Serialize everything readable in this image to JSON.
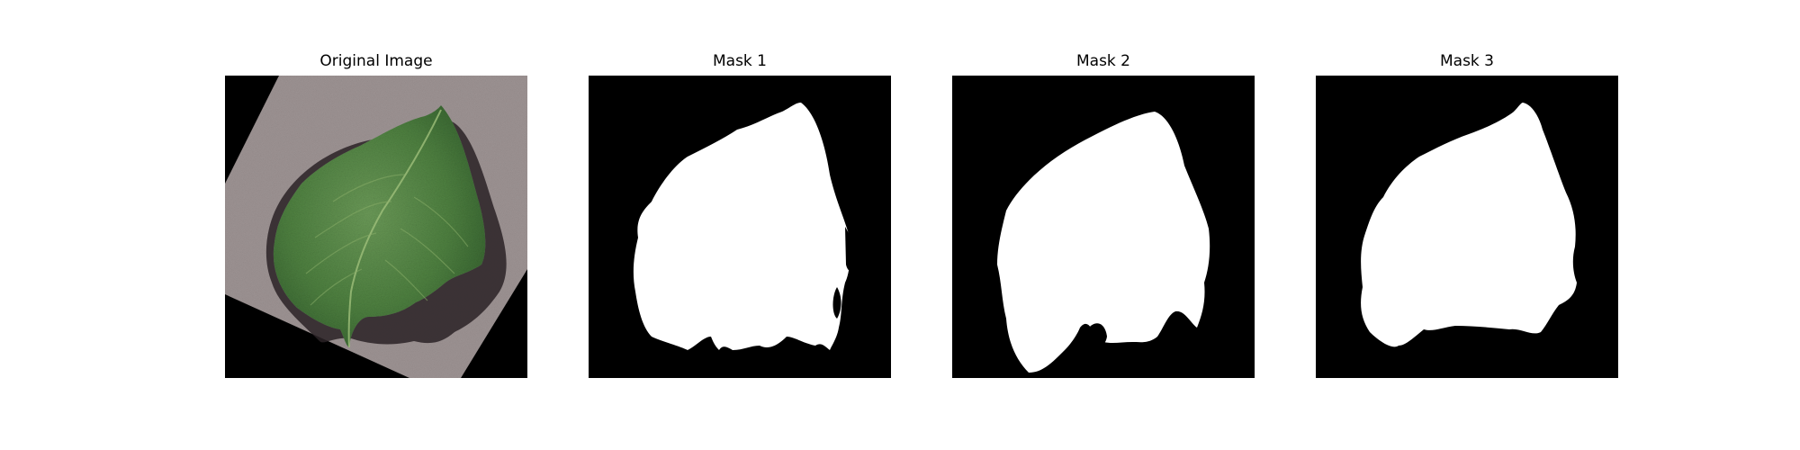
{
  "panels": [
    {
      "title": "Original Image"
    },
    {
      "title": "Mask 1"
    },
    {
      "title": "Mask 2"
    },
    {
      "title": "Mask 3"
    }
  ],
  "colors": {
    "background": "#000000",
    "paper": "#9e9494",
    "leaf_dark": "#2f5a2a",
    "leaf_mid": "#4e8040",
    "leaf_light": "#6b9a58",
    "shadow": "#2a2226",
    "mask": "#ffffff"
  }
}
